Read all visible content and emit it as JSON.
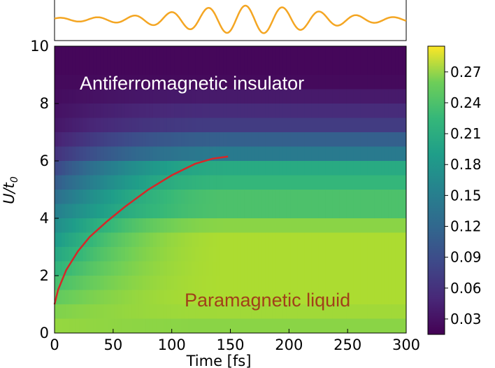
{
  "chart_data": [
    {
      "type": "line",
      "panel": "drive pulse",
      "color": "#f4a623",
      "envelope": {
        "center_time_fs": 165,
        "width_fs": 75
      },
      "cycles": 9.5
    },
    {
      "type": "heatmap",
      "xlabel": "Time [fs]",
      "ylabel": "U/t0",
      "xlim": [
        0,
        300
      ],
      "ylim": [
        0,
        10
      ],
      "x_ticks": [
        "0",
        "50",
        "100",
        "150",
        "200",
        "250",
        "300"
      ],
      "y_ticks": [
        "0",
        "2",
        "4",
        "6",
        "8",
        "10"
      ],
      "colormap": "viridis",
      "colorbar": {
        "range": [
          0.015,
          0.295
        ],
        "ticks": [
          "0.03",
          "0.06",
          "0.09",
          "0.12",
          "0.15",
          "0.18",
          "0.21",
          "0.24",
          "0.27"
        ],
        "tick_values": [
          0.03,
          0.06,
          0.09,
          0.12,
          0.15,
          0.18,
          0.21,
          0.24,
          0.27
        ]
      },
      "annotations": [
        {
          "text": "Antiferromagnetic insulator",
          "color": "#ffffff"
        },
        {
          "text": "Paramagnetic liquid",
          "color": "#a0401a"
        }
      ],
      "boundary_curve": {
        "color": "#d62728",
        "points": [
          [
            0,
            1.0
          ],
          [
            3,
            1.5
          ],
          [
            10,
            2.2
          ],
          [
            20,
            2.85
          ],
          [
            30,
            3.35
          ],
          [
            45,
            3.9
          ],
          [
            60,
            4.4
          ],
          [
            80,
            5.0
          ],
          [
            100,
            5.5
          ],
          [
            120,
            5.9
          ],
          [
            135,
            6.08
          ],
          [
            148,
            6.15
          ]
        ]
      },
      "rows": [
        {
          "u": 9.75,
          "v": 0.02
        },
        {
          "u": 9.25,
          "v": 0.02
        },
        {
          "u": 8.75,
          "v": 0.022
        },
        {
          "u": 8.25,
          "v": 0.024
        },
        {
          "u": 7.75,
          "v": 0.028
        },
        {
          "u": 7.25,
          "v": 0.032
        },
        {
          "u": 6.75,
          "v": 0.04
        },
        {
          "u": 6.25,
          "v": 0.055
        },
        {
          "u": 5.75,
          "v": 0.075
        },
        {
          "u": 5.25,
          "v": 0.095
        },
        {
          "u": 4.75,
          "v": 0.115
        },
        {
          "u": 4.25,
          "v": 0.135
        },
        {
          "u": 3.75,
          "v": 0.15
        },
        {
          "u": 3.25,
          "v": 0.165
        },
        {
          "u": 2.75,
          "v": 0.18
        },
        {
          "u": 2.25,
          "v": 0.195
        },
        {
          "u": 1.75,
          "v": 0.21
        },
        {
          "u": 1.25,
          "v": 0.225
        },
        {
          "u": 0.75,
          "v": 0.24
        },
        {
          "u": 0.25,
          "v": 0.25
        }
      ],
      "late_time_values": [
        {
          "u": 9.75,
          "v": 0.02
        },
        {
          "u": 9.25,
          "v": 0.02
        },
        {
          "u": 8.75,
          "v": 0.022
        },
        {
          "u": 8.25,
          "v": 0.035
        },
        {
          "u": 7.75,
          "v": 0.05
        },
        {
          "u": 7.25,
          "v": 0.065
        },
        {
          "u": 6.75,
          "v": 0.1
        },
        {
          "u": 6.25,
          "v": 0.13
        },
        {
          "u": 5.75,
          "v": 0.185
        },
        {
          "u": 5.25,
          "v": 0.2
        },
        {
          "u": 4.75,
          "v": 0.215
        },
        {
          "u": 4.25,
          "v": 0.215
        },
        {
          "u": 3.75,
          "v": 0.245
        },
        {
          "u": 3.25,
          "v": 0.26
        },
        {
          "u": 2.75,
          "v": 0.26
        },
        {
          "u": 2.25,
          "v": 0.26
        },
        {
          "u": 1.75,
          "v": 0.26
        },
        {
          "u": 1.25,
          "v": 0.26
        },
        {
          "u": 0.75,
          "v": 0.255
        },
        {
          "u": 0.25,
          "v": 0.245
        }
      ]
    }
  ]
}
